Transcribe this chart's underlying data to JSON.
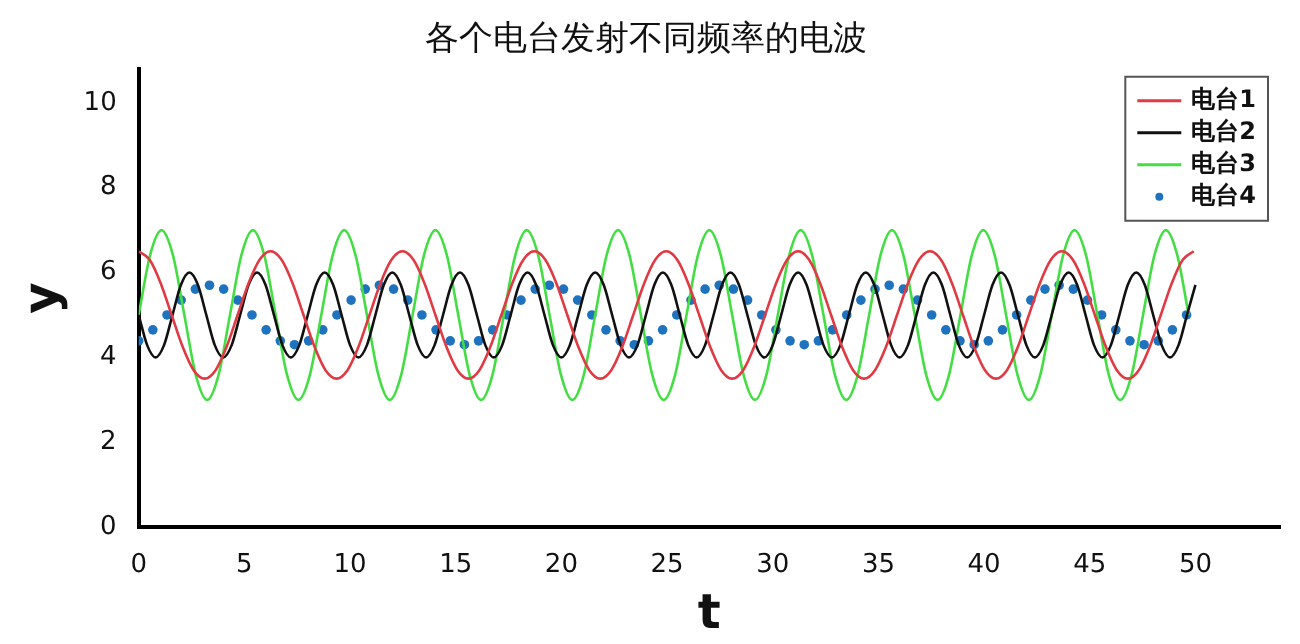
{
  "chart_data": {
    "type": "line",
    "title": "各个电台发射不同频率的电波",
    "xlabel": "t",
    "ylabel": "y",
    "xlim": [
      0,
      54
    ],
    "ylim": [
      0,
      10.8
    ],
    "xticks": [
      0,
      5,
      10,
      15,
      20,
      25,
      30,
      35,
      40,
      45,
      50
    ],
    "yticks": [
      0,
      2,
      4,
      6,
      8,
      10
    ],
    "grid": false,
    "legend": "top right",
    "line_style": "solid",
    "series": [
      {
        "name": "电台1",
        "color": "#e03a44",
        "marker": "none",
        "x": [
          0,
          0.52,
          1.04,
          1.56,
          2.08,
          2.6,
          3.12,
          3.64,
          4.16,
          4.68,
          5.2,
          5.72,
          6.24,
          6.76,
          7.28,
          7.8,
          8.32,
          8.84,
          9.36,
          9.88,
          10.4,
          10.92,
          11.44,
          11.96,
          12.48,
          13,
          13.52,
          14.04,
          14.56,
          15.08,
          15.6,
          16.12,
          16.64,
          17.16,
          17.68,
          18.2,
          18.72,
          19.24,
          19.76,
          20.28,
          20.8,
          21.32,
          21.84,
          22.36,
          22.88,
          23.4,
          23.92,
          24.44,
          24.96,
          25.48,
          26,
          26.52,
          27.04,
          27.56,
          28.08,
          28.6,
          29.12,
          29.64,
          30.16,
          30.68,
          31.2,
          31.72,
          32.24,
          32.76,
          33.28,
          33.8,
          34.32,
          34.84,
          35.36,
          35.88,
          36.4,
          36.92,
          37.44,
          37.96,
          38.48,
          39,
          39.52,
          40.04,
          40.56,
          41.08,
          41.6,
          42.12,
          42.64,
          43.16,
          43.68,
          44.2,
          44.72,
          45.24,
          45.76,
          46.28,
          46.8,
          47.32,
          47.84,
          48.36,
          48.88,
          49.4,
          49.92
        ],
        "values": [
          6.5,
          6.3,
          5.75,
          5,
          4.25,
          3.7,
          3.5,
          3.7,
          4.25,
          5,
          5.75,
          6.3,
          6.5,
          6.3,
          5.75,
          5,
          4.25,
          3.7,
          3.5,
          3.7,
          4.25,
          5,
          5.75,
          6.3,
          6.5,
          6.3,
          5.75,
          5,
          4.25,
          3.7,
          3.5,
          3.7,
          4.25,
          5,
          5.75,
          6.3,
          6.5,
          6.3,
          5.75,
          5,
          4.25,
          3.7,
          3.5,
          3.7,
          4.25,
          5,
          5.75,
          6.3,
          6.5,
          6.3,
          5.75,
          5,
          4.25,
          3.7,
          3.5,
          3.7,
          4.25,
          5,
          5.75,
          6.3,
          6.5,
          6.3,
          5.75,
          5,
          4.25,
          3.7,
          3.5,
          3.7,
          4.25,
          5,
          5.75,
          6.3,
          6.5,
          6.3,
          5.75,
          5,
          4.25,
          3.7,
          3.5,
          3.7,
          4.25,
          5,
          5.75,
          6.3,
          6.5,
          6.3,
          5.75,
          5,
          4.25,
          3.7,
          3.5,
          3.7,
          4.25,
          5,
          5.75,
          6.3,
          6.5
        ]
      },
      {
        "name": "电台2",
        "color": "#111111",
        "marker": "none",
        "x": [
          0,
          0.4,
          0.8,
          1.2,
          1.6,
          2,
          2.4,
          2.8,
          3.2,
          3.6,
          4,
          4.4,
          4.8,
          5.2,
          5.6,
          6,
          6.4,
          6.8,
          7.2,
          7.6,
          8,
          8.4,
          8.8,
          9.2,
          9.6,
          10,
          10.4,
          10.8,
          11.2,
          11.6,
          12,
          12.4,
          12.8,
          13.2,
          13.6,
          14,
          14.4,
          14.8,
          15.2,
          15.6,
          16,
          16.4,
          16.8,
          17.2,
          17.6,
          18,
          18.4,
          18.8,
          19.2,
          19.6,
          20,
          20.4,
          20.8,
          21.2,
          21.6,
          22,
          22.4,
          22.8,
          23.2,
          23.6,
          24,
          24.4,
          24.8,
          25.2,
          25.6,
          26,
          26.4,
          26.8,
          27.2,
          27.6,
          28,
          28.4,
          28.8,
          29.2,
          29.6,
          30,
          30.4,
          30.8,
          31.2,
          31.6,
          32,
          32.4,
          32.8,
          33.2,
          33.6,
          34,
          34.4,
          34.8,
          35.2,
          35.6,
          36,
          36.4,
          36.8,
          37.2,
          37.6,
          38,
          38.4,
          38.8,
          39.2,
          39.6,
          40,
          40.4,
          40.8,
          41.2,
          41.6,
          42,
          42.4,
          42.8,
          43.2,
          43.6,
          44,
          44.4,
          44.8,
          45.2,
          45.6,
          46,
          46.4,
          46.8,
          47.2,
          47.6,
          48,
          48.4,
          48.8,
          49.2,
          49.6,
          50
        ],
        "values": [
          5,
          4.29,
          4,
          4.29,
          5,
          5.71,
          6,
          5.71,
          5,
          4.29,
          4,
          4.29,
          5,
          5.71,
          6,
          5.71,
          5,
          4.29,
          4,
          4.29,
          5,
          5.71,
          6,
          5.71,
          5,
          4.29,
          4,
          4.29,
          5,
          5.71,
          6,
          5.71,
          5,
          4.29,
          4,
          4.29,
          5,
          5.71,
          6,
          5.71,
          5,
          4.29,
          4,
          4.29,
          5,
          5.71,
          6,
          5.71,
          5,
          4.29,
          4,
          4.29,
          5,
          5.71,
          6,
          5.71,
          5,
          4.29,
          4,
          4.29,
          5,
          5.71,
          6,
          5.71,
          5,
          4.29,
          4,
          4.29,
          5,
          5.71,
          6,
          5.71,
          5,
          4.29,
          4,
          4.29,
          5,
          5.71,
          6,
          5.71,
          5,
          4.29,
          4,
          4.29,
          5,
          5.71,
          6,
          5.71,
          5,
          4.29,
          4,
          4.29,
          5,
          5.71,
          6,
          5.71,
          5,
          4.29,
          4,
          4.29,
          5,
          5.71,
          6,
          5.71,
          5,
          4.29,
          4,
          4.29,
          5,
          5.71,
          6,
          5.71,
          5,
          4.29,
          4,
          4.29,
          5,
          5.71,
          6,
          5.71,
          5,
          4.29,
          4,
          4.29,
          5,
          5.71
        ]
      },
      {
        "name": "电台3",
        "color": "#44dd44",
        "marker": "none",
        "x": [
          0,
          0.54,
          1.08,
          1.62,
          2.16,
          2.7,
          3.24,
          3.78,
          4.32,
          4.86,
          5.4,
          5.94,
          6.48,
          7.02,
          7.56,
          8.1,
          8.64,
          9.18,
          9.72,
          10.26,
          10.8,
          11.34,
          11.88,
          12.42,
          12.96,
          13.5,
          14.04,
          14.58,
          15.12,
          15.66,
          16.2,
          16.74,
          17.28,
          17.82,
          18.36,
          18.9,
          19.44,
          19.98,
          20.52,
          21.06,
          21.6,
          22.14,
          22.68,
          23.22,
          23.76,
          24.3,
          24.84,
          25.38,
          25.92,
          26.46,
          27,
          27.54,
          28.08,
          28.62,
          29.16,
          29.7,
          30.24,
          30.78,
          31.32,
          31.86,
          32.4,
          32.94,
          33.48,
          34.02,
          34.56,
          35.1,
          35.64,
          36.18,
          36.72,
          37.26,
          37.8,
          38.34,
          38.88,
          39.42,
          39.96,
          40.5,
          41.04,
          41.58,
          42.12,
          42.66,
          43.2,
          43.74,
          44.28,
          44.82,
          45.36,
          45.9,
          46.44,
          46.98,
          47.52,
          48.06,
          48.6,
          49.14,
          49.68
        ],
        "values": [
          5,
          6.41,
          7,
          6.41,
          5,
          3.59,
          3,
          3.59,
          5,
          6.41,
          7,
          6.41,
          5,
          3.59,
          3,
          3.59,
          5,
          6.41,
          7,
          6.41,
          5,
          3.59,
          3,
          3.59,
          5,
          6.41,
          7,
          6.41,
          5,
          3.59,
          3,
          3.59,
          5,
          6.41,
          7,
          6.41,
          5,
          3.59,
          3,
          3.59,
          5,
          6.41,
          7,
          6.41,
          5,
          3.59,
          3,
          3.59,
          5,
          6.41,
          7,
          6.41,
          5,
          3.59,
          3,
          3.59,
          5,
          6.41,
          7,
          6.41,
          5,
          3.59,
          3,
          3.59,
          5,
          6.41,
          7,
          6.41,
          5,
          3.59,
          3,
          3.59,
          5,
          6.41,
          7,
          6.41,
          5,
          3.59,
          3,
          3.59,
          5,
          6.41,
          7,
          6.41,
          5,
          3.59,
          3,
          3.59,
          5,
          6.41,
          7,
          6.41,
          5
        ]
      },
      {
        "name": "电台4",
        "color": "#1f72bd",
        "type": "scatter",
        "marker": "circle",
        "x": [
          0,
          0.67,
          1.34,
          2.01,
          2.68,
          3.35,
          4.02,
          4.69,
          5.36,
          6.03,
          6.7,
          7.37,
          8.04,
          8.71,
          9.38,
          10.05,
          10.72,
          11.39,
          12.06,
          12.73,
          13.4,
          14.07,
          14.74,
          15.41,
          16.08,
          16.75,
          17.42,
          18.09,
          18.76,
          19.43,
          20.1,
          20.77,
          21.44,
          22.11,
          22.78,
          23.45,
          24.12,
          24.79,
          25.46,
          26.13,
          26.8,
          27.47,
          28.14,
          28.81,
          29.48,
          30.15,
          30.82,
          31.49,
          32.16,
          32.83,
          33.5,
          34.17,
          34.84,
          35.51,
          36.18,
          36.85,
          37.52,
          38.19,
          38.86,
          39.53,
          40.2,
          40.87,
          41.54,
          42.21,
          42.88,
          43.55,
          44.22,
          44.89,
          45.56,
          46.23,
          46.9,
          47.57,
          48.24,
          48.91,
          49.58
        ],
        "values": [
          4.39,
          4.65,
          5,
          5.35,
          5.61,
          5.7,
          5.61,
          5.35,
          5,
          4.65,
          4.39,
          4.3,
          4.39,
          4.65,
          5,
          5.35,
          5.61,
          5.7,
          5.61,
          5.35,
          5,
          4.65,
          4.39,
          4.3,
          4.39,
          4.65,
          5,
          5.35,
          5.61,
          5.7,
          5.61,
          5.35,
          5,
          4.65,
          4.39,
          4.3,
          4.39,
          4.65,
          5,
          5.35,
          5.61,
          5.7,
          5.61,
          5.35,
          5,
          4.65,
          4.39,
          4.3,
          4.39,
          4.65,
          5,
          5.35,
          5.61,
          5.7,
          5.61,
          5.35,
          5,
          4.65,
          4.39,
          4.3,
          4.39,
          4.65,
          5,
          5.35,
          5.61,
          5.7,
          5.61,
          5.35,
          5,
          4.65,
          4.39,
          4.3,
          4.39,
          4.65,
          5
        ]
      }
    ]
  }
}
